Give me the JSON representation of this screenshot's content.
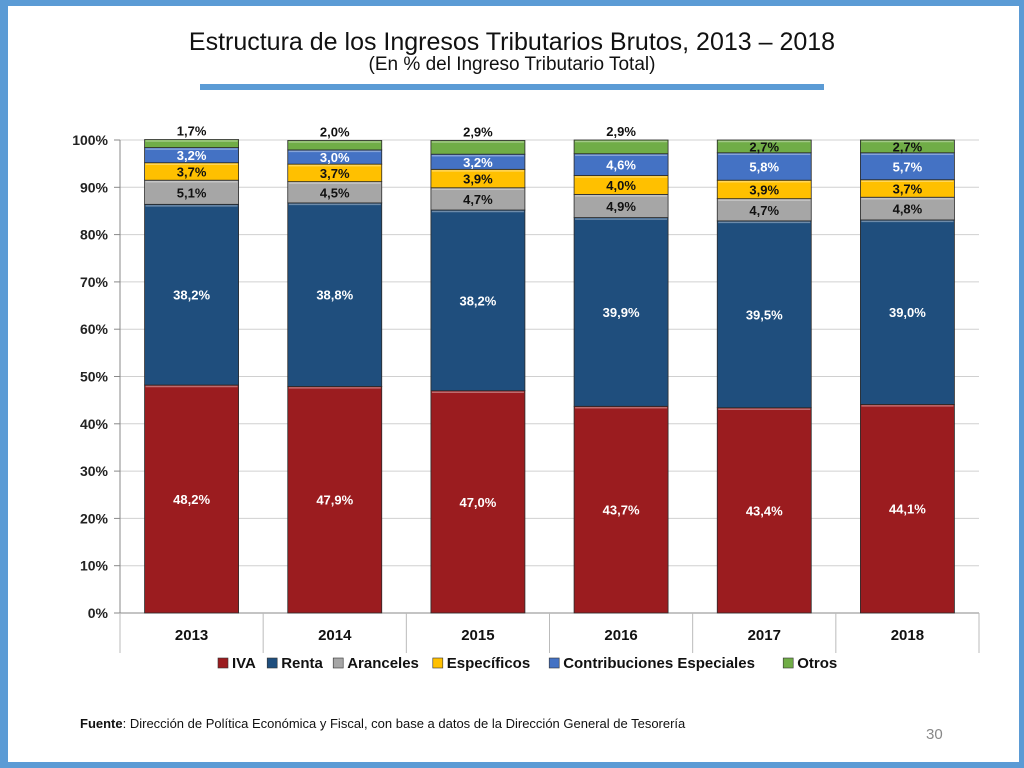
{
  "title": "Estructura de los Ingresos Tributarios Brutos, 2013 –  2018",
  "subtitle": "(En % del Ingreso Tributario Total)",
  "footer": {
    "label": "Fuente",
    "text": ": Dirección de Política Económica y Fiscal, con base a datos de la Dirección General de Tesorería"
  },
  "page_number": "30",
  "colors": {
    "IVA": "#9b1c1f",
    "Renta": "#1f4e7d",
    "Aranceles": "#a6a6a6",
    "Especificos": "#ffc000",
    "Contribuciones": "#4472c4",
    "Otros": "#70ad47"
  },
  "chart_data": {
    "type": "bar",
    "stacked": true,
    "categories": [
      "2013",
      "2014",
      "2015",
      "2016",
      "2017",
      "2018"
    ],
    "series": [
      {
        "name": "IVA",
        "values": [
          48.2,
          47.9,
          47.0,
          43.7,
          43.4,
          44.1
        ],
        "labels": [
          "48,2%",
          "47,9%",
          "47,0%",
          "43,7%",
          "43,4%",
          "44,1%"
        ]
      },
      {
        "name": "Renta",
        "values": [
          38.2,
          38.8,
          38.2,
          39.9,
          39.5,
          39.0
        ],
        "labels": [
          "38,2%",
          "38,8%",
          "38,2%",
          "39,9%",
          "39,5%",
          "39,0%"
        ]
      },
      {
        "name": "Aranceles",
        "values": [
          5.1,
          4.5,
          4.7,
          4.9,
          4.7,
          4.8
        ],
        "labels": [
          "5,1%",
          "4,5%",
          "4,7%",
          "4,9%",
          "4,7%",
          "4,8%"
        ]
      },
      {
        "name": "Específicos",
        "values": [
          3.7,
          3.7,
          3.9,
          4.0,
          3.9,
          3.7
        ],
        "labels": [
          "3,7%",
          "3,7%",
          "3,9%",
          "4,0%",
          "3,9%",
          "3,7%"
        ]
      },
      {
        "name": "Contribuciones Especiales",
        "values": [
          3.2,
          3.0,
          3.2,
          4.6,
          5.8,
          5.7
        ],
        "labels": [
          "3,2%",
          "3,0%",
          "3,2%",
          "4,6%",
          "5,8%",
          "5,7%"
        ]
      },
      {
        "name": "Otros",
        "values": [
          1.7,
          2.0,
          2.9,
          2.9,
          2.7,
          2.7
        ],
        "labels": [
          "1,7%",
          "2,0%",
          "2,9%",
          "2,9%",
          "2,7%",
          "2,7%"
        ]
      }
    ],
    "y_ticks": [
      "0%",
      "10%",
      "20%",
      "30%",
      "40%",
      "50%",
      "60%",
      "70%",
      "80%",
      "90%",
      "100%"
    ],
    "ylim": [
      0,
      100
    ],
    "legend": [
      "IVA",
      "Renta",
      "Aranceles",
      "Específicos",
      "Contribuciones Especiales",
      "Otros"
    ],
    "legend_position": "bottom"
  }
}
